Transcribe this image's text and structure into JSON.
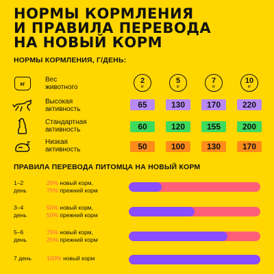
{
  "title": [
    "НОРМЫ КОРМЛЕНИЯ",
    "И ПРАВИЛА ПЕРЕВОДА",
    "НА НОВЫЙ КОРМ"
  ],
  "norms": {
    "heading": "НОРМЫ КОРМЛЕНИЯ, Г/ДЕНЬ:",
    "weight_row": {
      "icon": "kg-weight-icon",
      "icon_text": "кг",
      "label": "Вес\nживотного",
      "weights": [
        {
          "n": "2",
          "u": "кг"
        },
        {
          "n": "5",
          "u": "кг"
        },
        {
          "n": "7",
          "u": "кг"
        },
        {
          "n": "10",
          "u": "кг"
        }
      ]
    },
    "rows": [
      {
        "icon": "running-dog-icon",
        "label": "Высокая\nактивность",
        "values": [
          "65",
          "130",
          "170",
          "220"
        ],
        "color": "#B889F7"
      },
      {
        "icon": "sitting-dog-icon",
        "label": "Стандартная\nактивность",
        "values": [
          "60",
          "120",
          "155",
          "200"
        ],
        "color": "#3DDB5D"
      },
      {
        "icon": "sleeping-dog-icon",
        "label": "Низкая\nактивность",
        "values": [
          "50",
          "100",
          "130",
          "170"
        ],
        "color": "#FF8C1A"
      }
    ]
  },
  "transition": {
    "heading": "ПРАВИЛА ПЕРЕВОДА ПИТОМЦА НА НОВЫЙ КОРМ",
    "rows": [
      {
        "day": "1–2\nдень",
        "new_pct": "25%",
        "new_label": " новый корм,",
        "old_pct": "75%",
        "old_label": " прежний корм",
        "new_fraction": 0.25
      },
      {
        "day": "3–4\nдень",
        "new_pct": "50%",
        "new_label": " новый корм,",
        "old_pct": "50%",
        "old_label": " прежний корм",
        "new_fraction": 0.5
      },
      {
        "day": "5–6\nдень",
        "new_pct": "75%",
        "new_label": " новый корм,",
        "old_pct": "25%",
        "old_label": " прежний корм",
        "new_fraction": 0.75
      },
      {
        "day": "7 день",
        "new_pct": "100%",
        "new_label": " новый корм",
        "old_pct": "",
        "old_label": "",
        "new_fraction": 1.0
      }
    ]
  },
  "colors": {
    "background": "#FFD600",
    "new_feed": "#8A4DFF",
    "old_feed": "#FF5E78"
  }
}
